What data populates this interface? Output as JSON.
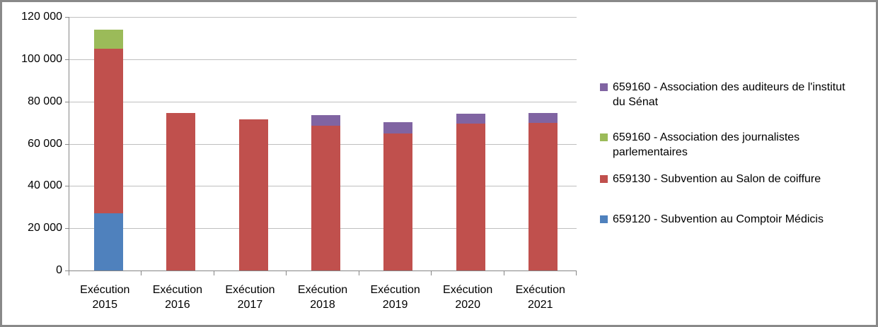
{
  "chart_data": {
    "type": "bar",
    "stacked": true,
    "title": "",
    "xlabel": "",
    "ylabel": "",
    "grid": true,
    "categories": [
      {
        "line1": "Exécution",
        "line2": "2015"
      },
      {
        "line1": "Exécution",
        "line2": "2016"
      },
      {
        "line1": "Exécution",
        "line2": "2017"
      },
      {
        "line1": "Exécution",
        "line2": "2018"
      },
      {
        "line1": "Exécution",
        "line2": "2019"
      },
      {
        "line1": "Exécution",
        "line2": "2020"
      },
      {
        "line1": "Exécution",
        "line2": "2021"
      }
    ],
    "series": [
      {
        "code": "659120",
        "name": "659120 - Subvention au Comptoir Médicis",
        "color": "#4F81BD",
        "values": [
          27000,
          0,
          0,
          0,
          0,
          0,
          0
        ]
      },
      {
        "code": "659130",
        "name": "659130 - Subvention au Salon de coiffure",
        "color": "#C0504D",
        "values": [
          78000,
          74500,
          71500,
          68400,
          65000,
          69600,
          69700
        ]
      },
      {
        "code": "659160g",
        "name": "659160 - Association des journalistes parlementaires",
        "color": "#9BBB59",
        "values": [
          9000,
          0,
          0,
          0,
          0,
          0,
          0
        ]
      },
      {
        "code": "659160p",
        "name": "659160 - Association des auditeurs de l'institut du Sénat",
        "color": "#8064A2",
        "values": [
          0,
          0,
          0,
          5000,
          5400,
          4800,
          4700
        ]
      }
    ],
    "y_axis": {
      "min": 0,
      "max": 120000,
      "step": 20000,
      "tick_labels": [
        "0",
        "20 000",
        "40 000",
        "60 000",
        "80 000",
        "100 000",
        "120 000"
      ]
    },
    "legend": {
      "position": "right",
      "items": [
        {
          "label": "659160 - Association des auditeurs de l'institut du Sénat",
          "color": "#8064A2"
        },
        {
          "label": "659160 - Association des journalistes parlementaires",
          "color": "#9BBB59"
        },
        {
          "label": "659130 - Subvention au Salon de coiffure",
          "color": "#C0504D"
        },
        {
          "label": "659120 - Subvention au Comptoir Médicis",
          "color": "#4F81BD"
        }
      ]
    },
    "colors": {
      "background": "#FFFFFF",
      "frame_border": "#898989",
      "axis": "#868686",
      "gridline": "#BFBFBF",
      "text": "#000000"
    }
  }
}
